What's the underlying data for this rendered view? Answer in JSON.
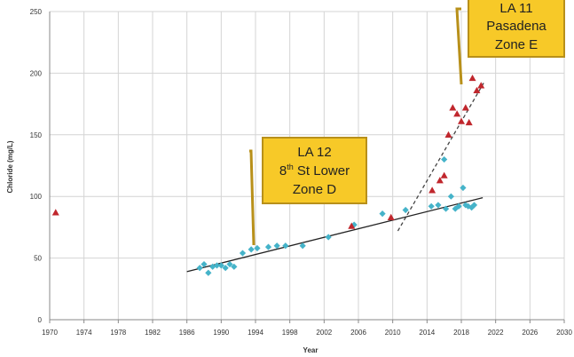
{
  "chart_data": {
    "type": "scatter",
    "xlabel": "Year",
    "ylabel": "Chloride  (mg/L)",
    "xlim": [
      1970,
      2030
    ],
    "ylim": [
      0,
      250
    ],
    "x_ticks": [
      "1970",
      "1974",
      "1978",
      "1982",
      "1986",
      "1990",
      "1994",
      "1998",
      "2002",
      "2006",
      "2010",
      "2014",
      "2018",
      "2022",
      "2026",
      "2030"
    ],
    "y_ticks": [
      "0",
      "50",
      "100",
      "150",
      "200",
      "250"
    ],
    "grid": true,
    "colors": {
      "LA 12": "#45b3c9",
      "LA 11": "#c0272d",
      "callout_fill": "#f7c928",
      "callout_border": "#b8901a",
      "grid": "#d4d4d4"
    },
    "series": [
      {
        "name": "LA 12",
        "marker": "diamond",
        "points": [
          [
            1987.5,
            42
          ],
          [
            1988,
            45
          ],
          [
            1988.5,
            38
          ],
          [
            1989,
            43
          ],
          [
            1989.5,
            44
          ],
          [
            1990,
            44
          ],
          [
            1990.5,
            42
          ],
          [
            1991,
            45
          ],
          [
            1991.5,
            43
          ],
          [
            1992.5,
            54
          ],
          [
            1993.5,
            57
          ],
          [
            1994.2,
            58
          ],
          [
            1995.5,
            59
          ],
          [
            1996.5,
            60
          ],
          [
            1997.5,
            60
          ],
          [
            1999.5,
            60
          ],
          [
            2002.5,
            67
          ],
          [
            2005.5,
            77
          ],
          [
            2008.8,
            86
          ],
          [
            2011.5,
            89
          ],
          [
            2014.5,
            92
          ],
          [
            2015.3,
            93
          ],
          [
            2016.2,
            90
          ],
          [
            2016.8,
            100
          ],
          [
            2017.3,
            90
          ],
          [
            2017.7,
            92
          ],
          [
            2018.2,
            107
          ],
          [
            2018.5,
            93
          ],
          [
            2018.8,
            92
          ],
          [
            2019.2,
            91
          ],
          [
            2019.5,
            93
          ],
          [
            2016,
            130
          ]
        ],
        "trend": [
          [
            1986,
            39
          ],
          [
            2020.5,
            99
          ]
        ]
      },
      {
        "name": "LA 11",
        "marker": "triangle",
        "points": [
          [
            1970.7,
            87
          ],
          [
            2005.2,
            76
          ],
          [
            2009.8,
            83
          ],
          [
            2014.6,
            105
          ],
          [
            2015.5,
            113
          ],
          [
            2016,
            117
          ],
          [
            2016.5,
            150
          ],
          [
            2017,
            172
          ],
          [
            2017.5,
            167
          ],
          [
            2018,
            161
          ],
          [
            2018.5,
            172
          ],
          [
            2018.9,
            160
          ],
          [
            2019.3,
            196
          ],
          [
            2019.8,
            186
          ],
          [
            2020.3,
            190
          ]
        ],
        "trend": [
          [
            2010.6,
            72
          ],
          [
            2020.6,
            192
          ]
        ]
      }
    ],
    "annotations": [
      {
        "id": "la12",
        "line1": "LA 12",
        "line2_base": "8",
        "line2_sup": "th",
        "line2_rest": " St Lower",
        "line3": "Zone D"
      },
      {
        "id": "la11",
        "line1": "LA 11",
        "line2": "Pasadena",
        "line3": "Zone E"
      }
    ]
  }
}
